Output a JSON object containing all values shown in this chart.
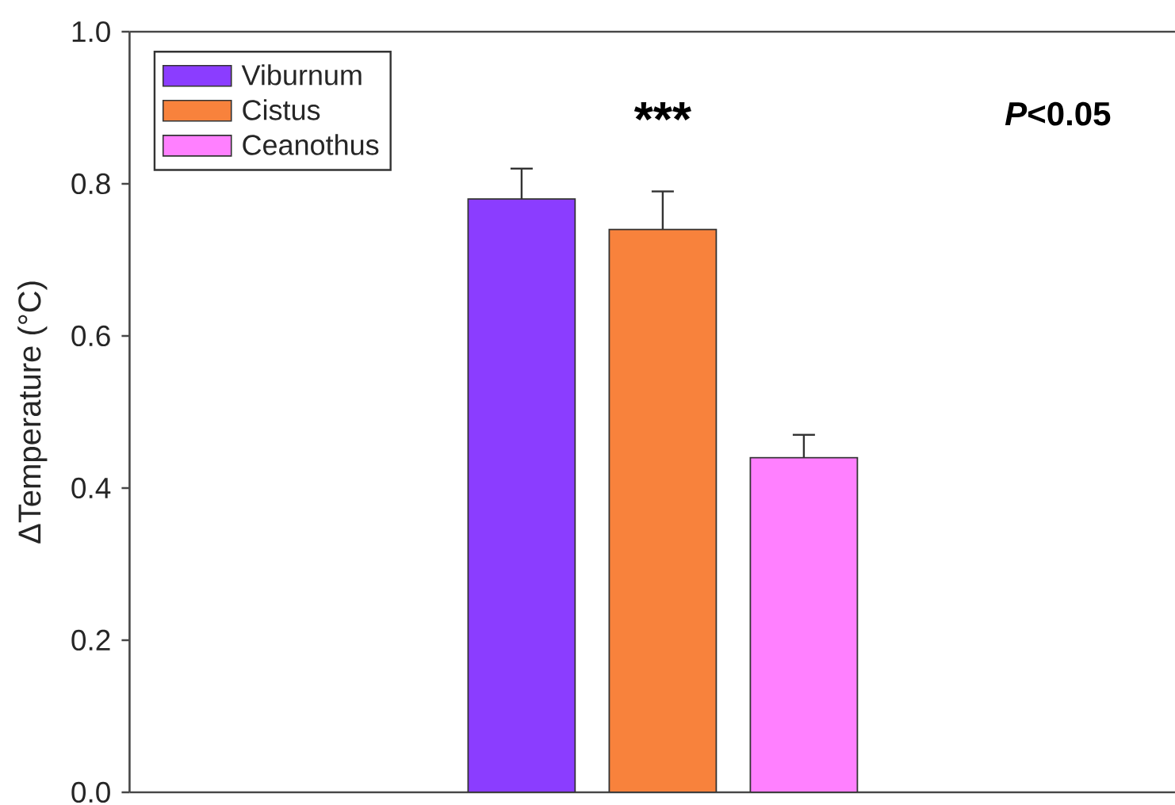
{
  "chart_data": {
    "type": "bar",
    "ylabel": "ΔTemperature (°C)",
    "categories": [
      null
    ],
    "ylim": [
      0,
      1
    ],
    "yticks": [
      {
        "value": 0,
        "label": "0.0"
      },
      {
        "value": 0.2,
        "label": "0.2"
      },
      {
        "value": 0.4,
        "label": "0.4"
      },
      {
        "value": 0.6,
        "label": "0.6"
      },
      {
        "value": 0.8,
        "label": "0.8"
      },
      {
        "value": 1,
        "label": "1.0"
      }
    ],
    "series": [
      {
        "name": "Viburnum",
        "color": "#8b3dff",
        "values": [
          0.78
        ],
        "errors": [
          [
            0.78,
            0.82
          ]
        ]
      },
      {
        "name": "Cistus",
        "color": "#f8823c",
        "values": [
          0.74
        ],
        "errors": [
          [
            0.74,
            0.79
          ]
        ]
      },
      {
        "name": "Ceanothus",
        "color": "#ff80ff",
        "values": [
          0.44
        ],
        "errors": [
          [
            0.44,
            0.47
          ]
        ]
      }
    ],
    "annotations": [
      "***",
      "*P*<0.05"
    ],
    "legend": "top left",
    "grid": false
  }
}
